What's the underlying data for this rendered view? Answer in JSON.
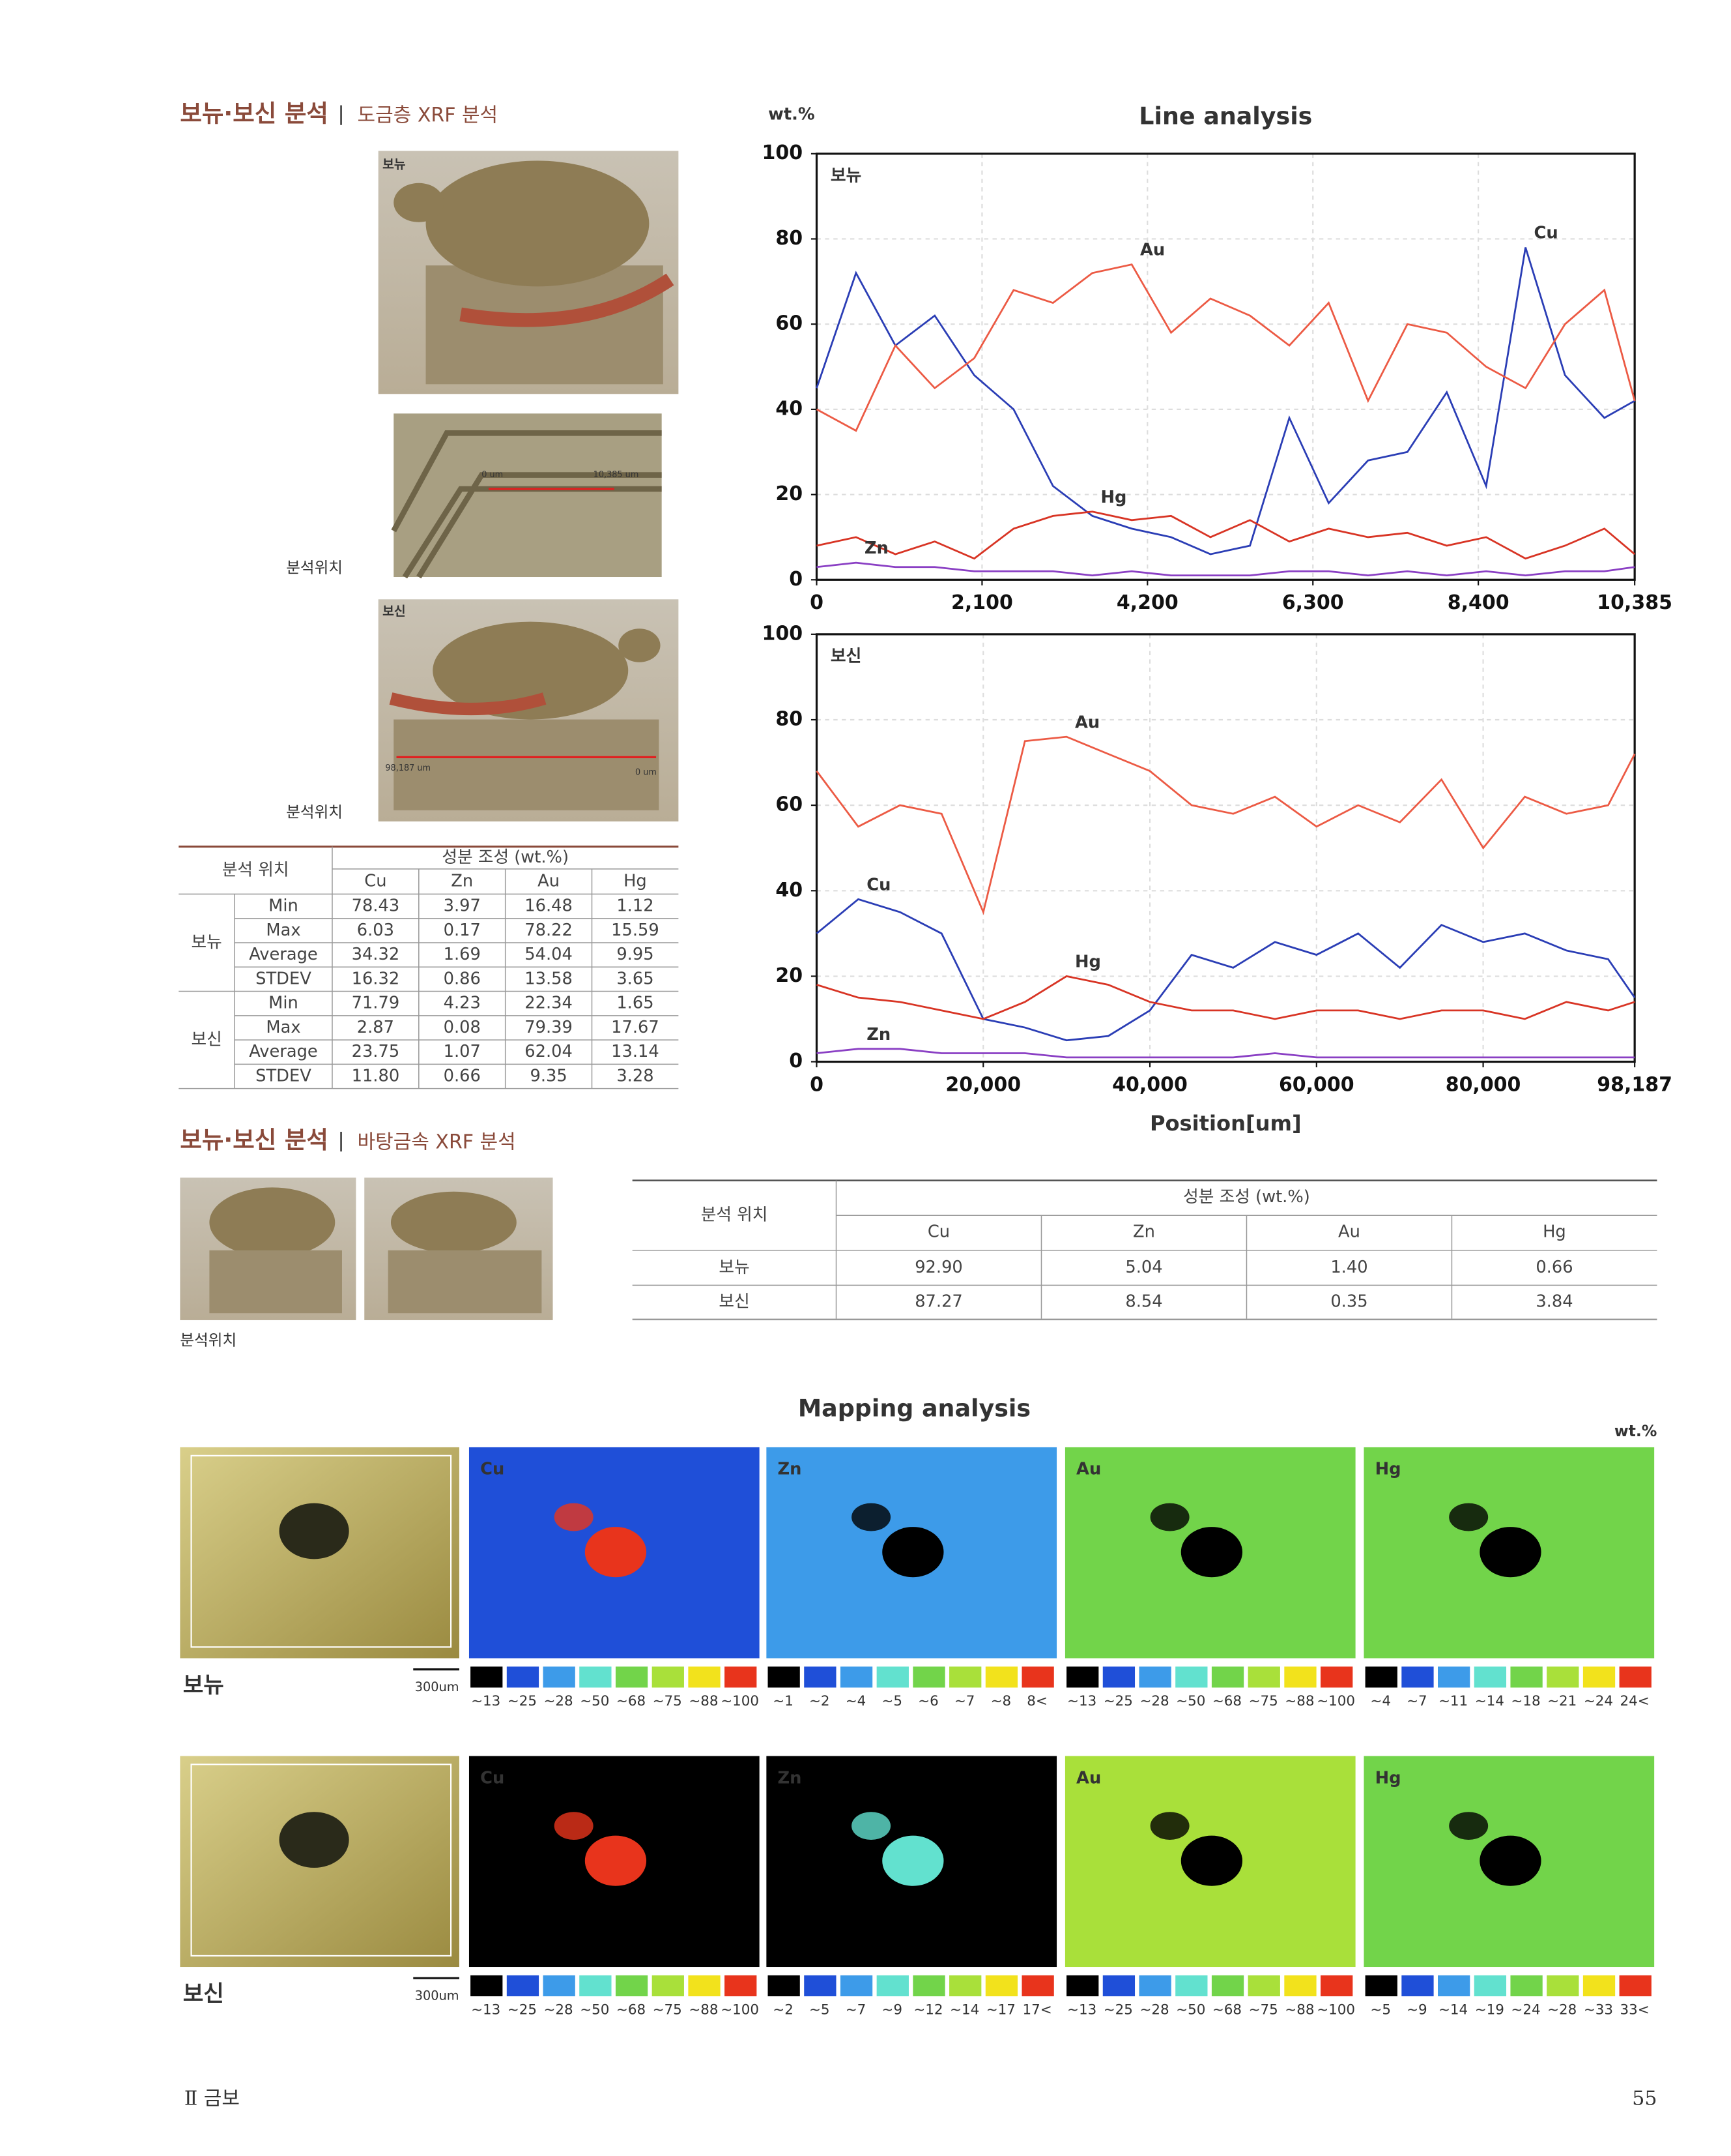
{
  "section1": {
    "title": "보뉴·보신 분석",
    "subtitle": "도금층 XRF 분석"
  },
  "photos": {
    "label1": "보뉴",
    "scale1_start": "0 um",
    "scale1_end": "10,385 um",
    "caption1": "분석위치",
    "label2": "보신",
    "scale2_start": "98,187 um",
    "scale2_end": "0 um",
    "caption2": "분석위치"
  },
  "table1": {
    "header_position": "분석 위치",
    "header_composition": "성분 조성 (wt.%)",
    "elements": [
      "Cu",
      "Zn",
      "Au",
      "Hg"
    ],
    "groups": [
      {
        "name": "보뉴",
        "rows": [
          {
            "stat": "Min",
            "values": [
              "78.43",
              "3.97",
              "16.48",
              "1.12"
            ]
          },
          {
            "stat": "Max",
            "values": [
              "6.03",
              "0.17",
              "78.22",
              "15.59"
            ]
          },
          {
            "stat": "Average",
            "values": [
              "34.32",
              "1.69",
              "54.04",
              "9.95"
            ]
          },
          {
            "stat": "STDEV",
            "values": [
              "16.32",
              "0.86",
              "13.58",
              "3.65"
            ]
          }
        ]
      },
      {
        "name": "보신",
        "rows": [
          {
            "stat": "Min",
            "values": [
              "71.79",
              "4.23",
              "22.34",
              "1.65"
            ]
          },
          {
            "stat": "Max",
            "values": [
              "2.87",
              "0.08",
              "79.39",
              "17.67"
            ]
          },
          {
            "stat": "Average",
            "values": [
              "23.75",
              "1.07",
              "62.04",
              "13.14"
            ]
          },
          {
            "stat": "STDEV",
            "values": [
              "11.80",
              "0.66",
              "9.35",
              "3.28"
            ]
          }
        ]
      }
    ]
  },
  "chart_data": [
    {
      "type": "line",
      "title": "Line analysis",
      "y_label": "wt.%",
      "panel_label": "보뉴",
      "grid": true,
      "x": [
        0,
        500,
        1000,
        1500,
        2000,
        2500,
        3000,
        3500,
        4000,
        4500,
        5000,
        5500,
        6000,
        6500,
        7000,
        7500,
        8000,
        8500,
        9000,
        9500,
        10000,
        10385
      ],
      "xlim": [
        0,
        10385
      ],
      "xticks": [
        0,
        {
          "value": 2100,
          "label": "2,100"
        },
        {
          "value": 4200,
          "label": "4,200"
        },
        {
          "value": 6300,
          "label": "6,300"
        },
        {
          "value": 8400,
          "label": "8,400"
        },
        {
          "value": 10385,
          "label": "10,385"
        }
      ],
      "ylim": [
        0,
        100
      ],
      "yticks": [
        0,
        20,
        40,
        60,
        80,
        100
      ],
      "series": [
        {
          "name": "Cu",
          "color": "#2a3db5",
          "values": [
            45,
            72,
            55,
            62,
            48,
            40,
            22,
            15,
            12,
            10,
            6,
            8,
            38,
            18,
            28,
            30,
            44,
            22,
            78,
            48,
            38,
            42
          ]
        },
        {
          "name": "Au",
          "color": "#ec5a44",
          "values": [
            40,
            35,
            55,
            45,
            52,
            68,
            65,
            72,
            74,
            58,
            66,
            62,
            55,
            65,
            42,
            60,
            58,
            50,
            45,
            60,
            68,
            42
          ]
        },
        {
          "name": "Hg",
          "color": "#d83424",
          "values": [
            8,
            10,
            6,
            9,
            5,
            12,
            15,
            16,
            14,
            15,
            10,
            14,
            9,
            12,
            10,
            11,
            8,
            10,
            5,
            8,
            12,
            6
          ]
        },
        {
          "name": "Zn",
          "color": "#8a3fc4",
          "values": [
            3,
            4,
            3,
            3,
            2,
            2,
            2,
            1,
            2,
            1,
            1,
            1,
            2,
            2,
            1,
            2,
            1,
            2,
            1,
            2,
            2,
            3
          ]
        }
      ]
    },
    {
      "type": "line",
      "panel_label": "보신",
      "x_label": "Position[um]",
      "grid": true,
      "x": [
        0,
        5000,
        10000,
        15000,
        20000,
        25000,
        30000,
        35000,
        40000,
        45000,
        50000,
        55000,
        60000,
        65000,
        70000,
        75000,
        80000,
        85000,
        90000,
        95000,
        98187
      ],
      "xlim": [
        0,
        98187
      ],
      "xticks": [
        0,
        {
          "value": 20000,
          "label": "20,000"
        },
        {
          "value": 40000,
          "label": "40,000"
        },
        {
          "value": 60000,
          "label": "60,000"
        },
        {
          "value": 80000,
          "label": "80,000"
        },
        {
          "value": 98187,
          "label": "98,187"
        }
      ],
      "ylim": [
        0,
        100
      ],
      "yticks": [
        0,
        20,
        40,
        60,
        80,
        100
      ],
      "series": [
        {
          "name": "Au",
          "color": "#ec5a44",
          "values": [
            68,
            55,
            60,
            58,
            35,
            75,
            76,
            72,
            68,
            60,
            58,
            62,
            55,
            60,
            56,
            66,
            50,
            62,
            58,
            60,
            72
          ]
        },
        {
          "name": "Cu",
          "color": "#2a3db5",
          "values": [
            30,
            38,
            35,
            30,
            10,
            8,
            5,
            6,
            12,
            25,
            22,
            28,
            25,
            30,
            22,
            32,
            28,
            30,
            26,
            24,
            15
          ]
        },
        {
          "name": "Hg",
          "color": "#d83424",
          "values": [
            18,
            15,
            14,
            12,
            10,
            14,
            20,
            18,
            14,
            12,
            12,
            10,
            12,
            12,
            10,
            12,
            12,
            10,
            14,
            12,
            14
          ]
        },
        {
          "name": "Zn",
          "color": "#8a3fc4",
          "values": [
            2,
            3,
            3,
            2,
            2,
            2,
            1,
            1,
            1,
            1,
            1,
            2,
            1,
            1,
            1,
            1,
            1,
            1,
            1,
            1,
            1
          ]
        }
      ]
    }
  ],
  "section2": {
    "title": "보뉴·보신 분석",
    "subtitle": "바탕금속 XRF 분석",
    "caption": "분석위치"
  },
  "table2": {
    "header_position": "분석 위치",
    "header_composition": "성분 조성 (wt.%)",
    "elements": [
      "Cu",
      "Zn",
      "Au",
      "Hg"
    ],
    "rows": [
      {
        "name": "보뉴",
        "values": [
          "92.90",
          "5.04",
          "1.40",
          "0.66"
        ]
      },
      {
        "name": "보신",
        "values": [
          "87.27",
          "8.54",
          "0.35",
          "3.84"
        ]
      }
    ]
  },
  "mapping": {
    "title": "Mapping analysis",
    "unit": "wt.%",
    "scale": "300um",
    "palette": [
      "#000000",
      "#1f4fd8",
      "#3d9be9",
      "#62e1cf",
      "#72d44a",
      "#a9e03a",
      "#f2e21c",
      "#e8341c"
    ],
    "rows": [
      {
        "name": "보뉴",
        "maps": [
          {
            "element": "Cu",
            "bg": "#1f4fd8",
            "spot": "#e8341c",
            "legend": [
              "~13",
              "~25",
              "~28",
              "~50",
              "~68",
              "~75",
              "~88",
              "~100"
            ]
          },
          {
            "element": "Zn",
            "bg": "#3d9be9",
            "spot": "#000000",
            "legend": [
              "~1",
              "~2",
              "~4",
              "~5",
              "~6",
              "~7",
              "~8",
              "8<"
            ]
          },
          {
            "element": "Au",
            "bg": "#72d44a",
            "spot": "#000000",
            "legend": [
              "~13",
              "~25",
              "~28",
              "~50",
              "~68",
              "~75",
              "~88",
              "~100"
            ]
          },
          {
            "element": "Hg",
            "bg": "#72d44a",
            "spot": "#000000",
            "legend": [
              "~4",
              "~7",
              "~11",
              "~14",
              "~18",
              "~21",
              "~24",
              "24<"
            ]
          }
        ]
      },
      {
        "name": "보신",
        "maps": [
          {
            "element": "Cu",
            "bg": "#000000",
            "spot": "#e8341c",
            "legend": [
              "~13",
              "~25",
              "~28",
              "~50",
              "~68",
              "~75",
              "~88",
              "~100"
            ]
          },
          {
            "element": "Zn",
            "bg": "#000000",
            "spot": "#62e1cf",
            "legend": [
              "~2",
              "~5",
              "~7",
              "~9",
              "~12",
              "~14",
              "~17",
              "17<"
            ]
          },
          {
            "element": "Au",
            "bg": "#a9e03a",
            "spot": "#000000",
            "legend": [
              "~13",
              "~25",
              "~28",
              "~50",
              "~68",
              "~75",
              "~88",
              "~100"
            ]
          },
          {
            "element": "Hg",
            "bg": "#72d44a",
            "spot": "#000000",
            "legend": [
              "~5",
              "~9",
              "~14",
              "~19",
              "~24",
              "~28",
              "~33",
              "33<"
            ]
          }
        ]
      }
    ]
  },
  "footer": {
    "section": "Ⅱ 금보",
    "page": "55"
  }
}
